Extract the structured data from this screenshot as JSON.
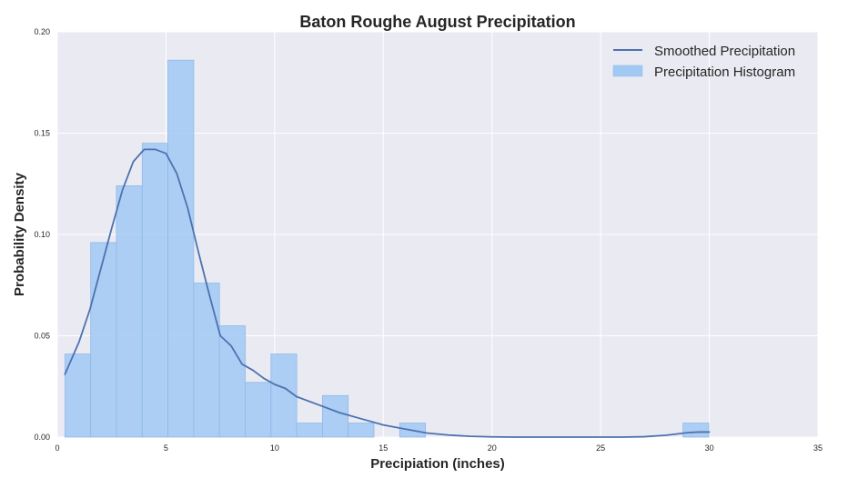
{
  "chart_data": {
    "type": "bar",
    "title": "Baton Roughe August Precipitation",
    "xlabel": "Precipiation (inches)",
    "ylabel": "Probability Density",
    "xlim": [
      0,
      35
    ],
    "ylim": [
      0,
      0.2
    ],
    "x_ticks": [
      "0",
      "5",
      "10",
      "15",
      "20",
      "25",
      "30",
      "35"
    ],
    "y_ticks": [
      "0.00",
      "0.05",
      "0.10",
      "0.15",
      "0.20"
    ],
    "grid": true,
    "legend_position": "top-right",
    "colors": {
      "background": "#eaeaf2",
      "grid": "#ffffff",
      "histogram_fill": "#a1c9f4",
      "histogram_edge": "#8fb9e8",
      "line": "#4c72b0"
    },
    "series": [
      {
        "name": "Precipitation Histogram",
        "kind": "histogram",
        "bin_edges": [
          0.35,
          1.535,
          2.72,
          3.905,
          5.09,
          6.275,
          7.46,
          8.645,
          9.83,
          11.015,
          12.2,
          13.385,
          14.57,
          15.755,
          16.94,
          18.125,
          19.31,
          20.495,
          21.68,
          22.865,
          24.05,
          25.235,
          26.42,
          27.605,
          28.79,
          29.975
        ],
        "values": [
          0.041,
          0.096,
          0.124,
          0.145,
          0.186,
          0.076,
          0.055,
          0.027,
          0.041,
          0.0069,
          0.0205,
          0.0069,
          0.0,
          0.0069,
          0.0,
          0.0,
          0.0,
          0.0,
          0.0,
          0.0,
          0.0,
          0.0,
          0.0,
          0.0,
          0.0069
        ]
      },
      {
        "name": "Smoothed Precipitation",
        "kind": "line",
        "x": [
          0.35,
          1,
          1.5,
          2,
          2.5,
          3,
          3.5,
          4,
          4.5,
          5,
          5.5,
          6,
          6.5,
          7,
          7.5,
          8,
          8.5,
          9,
          9.5,
          10,
          10.5,
          11,
          12,
          13,
          14,
          15,
          16,
          17,
          18,
          19,
          20,
          21,
          22,
          23,
          24,
          25,
          26,
          27,
          28,
          29,
          29.5,
          30
        ],
        "y": [
          0.031,
          0.047,
          0.063,
          0.083,
          0.103,
          0.122,
          0.136,
          0.142,
          0.142,
          0.14,
          0.13,
          0.113,
          0.091,
          0.07,
          0.05,
          0.045,
          0.036,
          0.033,
          0.029,
          0.026,
          0.024,
          0.02,
          0.016,
          0.012,
          0.009,
          0.006,
          0.004,
          0.002,
          0.001,
          0.0004,
          0.0001,
          0.0,
          0.0,
          0.0,
          0.0,
          0.0,
          0.0,
          0.0002,
          0.0009,
          0.0022,
          0.0025,
          0.0025
        ]
      }
    ]
  }
}
